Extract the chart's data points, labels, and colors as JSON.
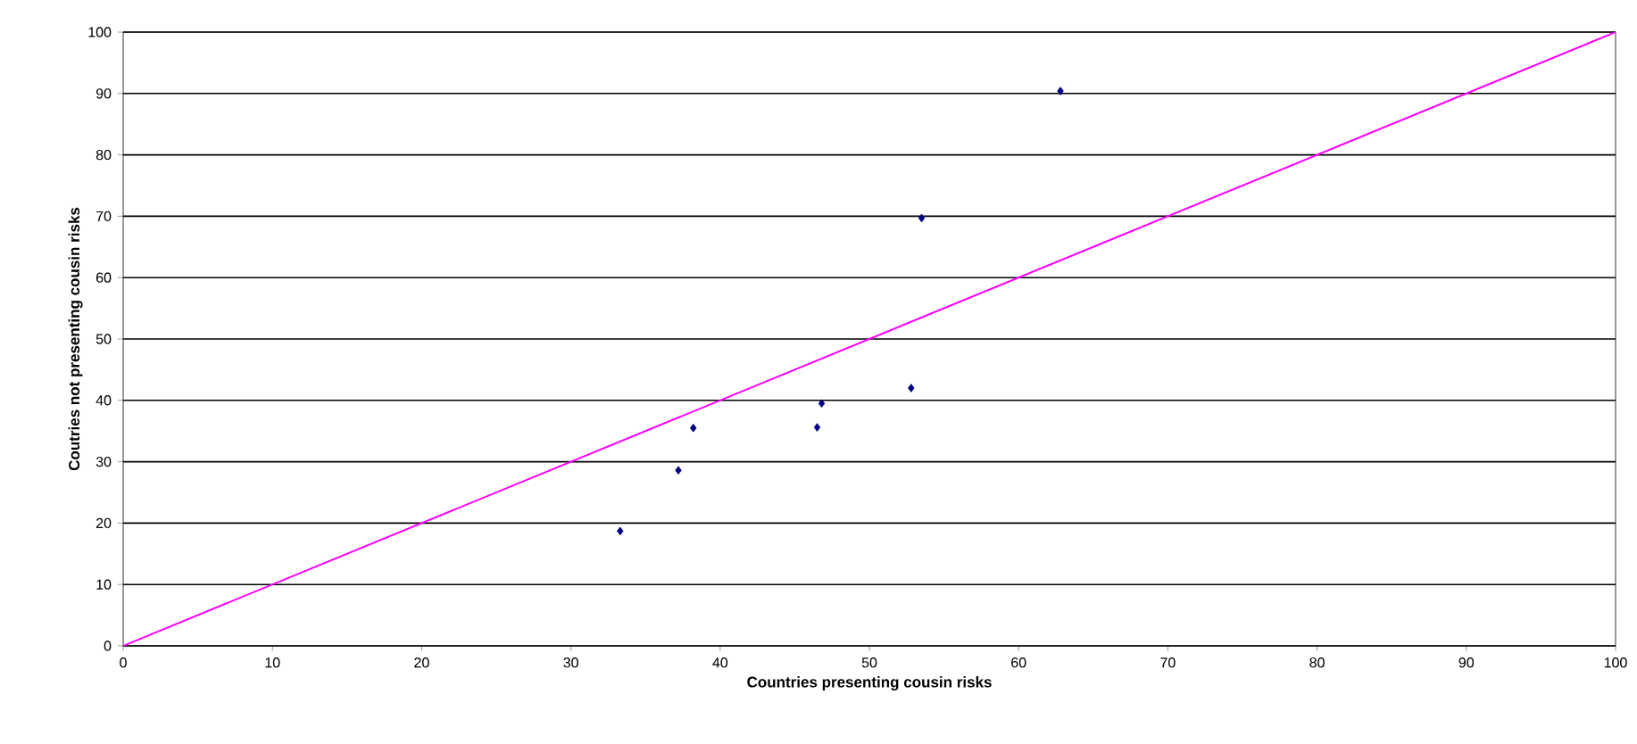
{
  "chart_data": {
    "type": "scatter",
    "xlabel": "Countries presenting cousin risks",
    "ylabel": "Coutries not presenting cousin risks",
    "xlim": [
      0,
      100
    ],
    "ylim": [
      0,
      100
    ],
    "xticks": [
      0,
      10,
      20,
      30,
      40,
      50,
      60,
      70,
      80,
      90,
      100
    ],
    "yticks": [
      0,
      10,
      20,
      30,
      40,
      50,
      60,
      70,
      80,
      90,
      100
    ],
    "grid": "y",
    "marker": "diamond",
    "series": [
      {
        "color": "#000080",
        "x": [
          33.3,
          37.2,
          38.2,
          46.5,
          46.8,
          52.8,
          53.5,
          62.8
        ],
        "values": [
          18.7,
          28.6,
          35.5,
          35.6,
          39.5,
          42.0,
          69.7,
          90.4
        ]
      },
      {
        "type": "line",
        "color": "#ff00ff",
        "x": [
          0,
          100
        ],
        "values": [
          0,
          100
        ],
        "marker": "none"
      }
    ]
  }
}
